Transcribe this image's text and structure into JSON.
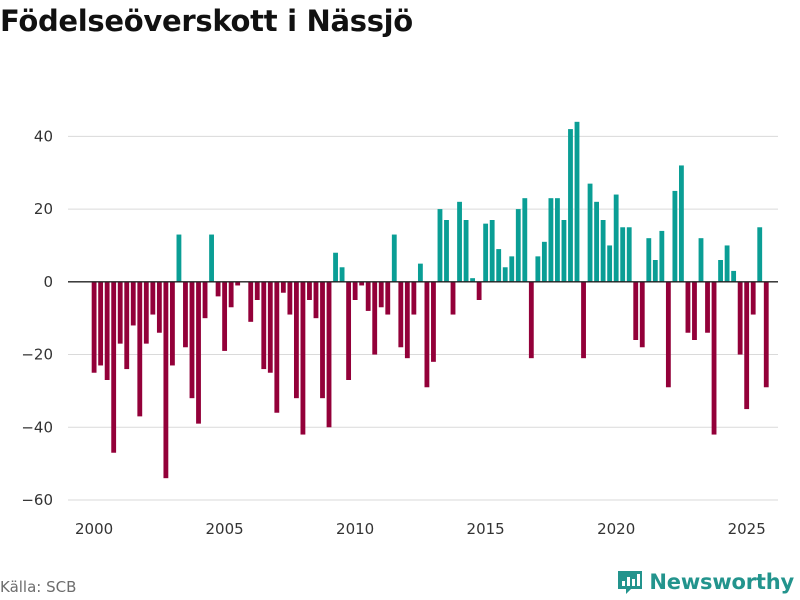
{
  "title": "Födelseöverskott i Nässjö",
  "source": "Källa: SCB",
  "brand": {
    "name": "Newsworthy",
    "icon": "bar-chart-logo-icon",
    "color": "#23948d"
  },
  "colors": {
    "positive": "#0a9e95",
    "negative": "#930039",
    "grid": "#dadada",
    "zero": "#222222"
  },
  "chart_data": {
    "type": "bar",
    "title": "Födelseöverskott i Nässjö",
    "xlabel": "",
    "ylabel": "",
    "ylim": [
      -60,
      50
    ],
    "xlim": [
      1999.0,
      2026.2
    ],
    "grid": true,
    "y_ticks": [
      -60,
      -40,
      -20,
      0,
      20,
      40
    ],
    "x_ticks": [
      2000,
      2005,
      2010,
      2015,
      2020,
      2025
    ],
    "x_tick_labels": [
      "2000",
      "2005",
      "2010",
      "2015",
      "2020",
      "2025"
    ],
    "y_tick_labels": [
      "−60",
      "−40",
      "−20",
      "0",
      "20",
      "40"
    ],
    "series": [
      {
        "name": "Födelseöverskott",
        "frequency": "quarterly",
        "start": 2000,
        "values": [
          -25,
          -23,
          -27,
          -47,
          -17,
          -24,
          -12,
          -37,
          -17,
          -9,
          -14,
          -54,
          -23,
          13,
          -18,
          -32,
          -39,
          -10,
          13,
          -4,
          -19,
          -7,
          -1,
          0,
          -11,
          -5,
          -24,
          -25,
          -36,
          -3,
          -9,
          -32,
          -42,
          -5,
          -10,
          -32,
          -40,
          8,
          4,
          -27,
          -5,
          -1,
          -8,
          -20,
          -7,
          -9,
          13,
          -18,
          -21,
          -9,
          5,
          -29,
          -22,
          20,
          17,
          -9,
          22,
          17,
          1,
          -5,
          16,
          17,
          9,
          4,
          7,
          20,
          23,
          -21,
          7,
          11,
          23,
          23,
          17,
          42,
          44,
          -21,
          27,
          22,
          17,
          10,
          24,
          15,
          15,
          -16,
          -18,
          12,
          6,
          14,
          -29,
          25,
          32,
          -14,
          -16,
          12,
          -14,
          -42,
          6,
          10,
          3,
          -20,
          -35,
          -9,
          15,
          -29
        ]
      }
    ]
  }
}
